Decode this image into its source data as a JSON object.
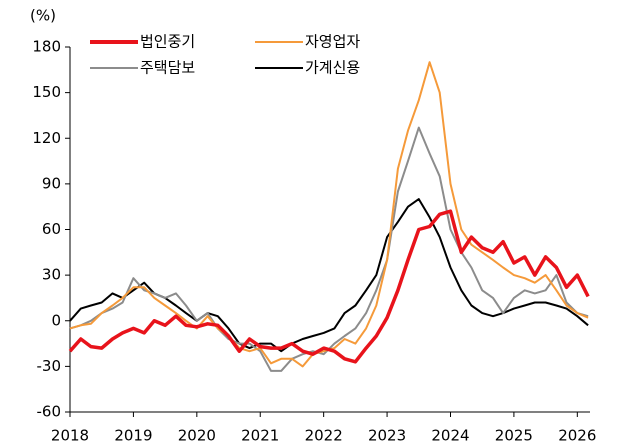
{
  "chart_data": {
    "type": "line",
    "y_unit_label": "(%)",
    "x": [
      2018,
      2018.17,
      2018.33,
      2018.5,
      2018.67,
      2018.83,
      2019,
      2019.17,
      2019.33,
      2019.5,
      2019.67,
      2019.83,
      2020,
      2020.17,
      2020.33,
      2020.5,
      2020.67,
      2020.83,
      2021,
      2021.17,
      2021.33,
      2021.5,
      2021.67,
      2021.83,
      2022,
      2022.17,
      2022.33,
      2022.5,
      2022.67,
      2022.83,
      2023,
      2023.17,
      2023.33,
      2023.5,
      2023.67,
      2023.83,
      2024,
      2024.17,
      2024.33,
      2024.5,
      2024.67,
      2024.83,
      2025,
      2025.17,
      2025.33,
      2025.5,
      2025.67,
      2025.83,
      2026,
      2026.17
    ],
    "series": [
      {
        "name": "법인중기",
        "color": "#e8131b",
        "values": [
          -20,
          -12,
          -17,
          -18,
          -12,
          -8,
          -5,
          -8,
          0,
          -3,
          3,
          -3,
          -4,
          -2,
          -3,
          -10,
          -20,
          -12,
          -17,
          -18,
          -18,
          -15,
          -20,
          -22,
          -18,
          -20,
          -25,
          -27,
          -18,
          -10,
          2,
          20,
          40,
          60,
          62,
          70,
          72,
          45,
          55,
          48,
          45,
          52,
          38,
          42,
          30,
          42,
          35,
          22,
          30,
          16
        ]
      },
      {
        "name": "자영업자",
        "color": "#f59a3a",
        "values": [
          -5,
          -3,
          -2,
          5,
          10,
          15,
          22,
          22,
          15,
          10,
          5,
          0,
          -5,
          3,
          -5,
          -10,
          -18,
          -20,
          -18,
          -28,
          -25,
          -25,
          -30,
          -22,
          -20,
          -18,
          -12,
          -15,
          -5,
          10,
          40,
          100,
          125,
          145,
          170,
          150,
          90,
          60,
          50,
          45,
          40,
          35,
          30,
          28,
          25,
          30,
          20,
          10,
          5,
          2
        ]
      },
      {
        "name": "주택담보",
        "color": "#8c8c8c",
        "values": [
          -5,
          -3,
          0,
          5,
          8,
          12,
          28,
          20,
          18,
          15,
          18,
          10,
          0,
          5,
          -5,
          -12,
          -15,
          -15,
          -20,
          -33,
          -33,
          -25,
          -22,
          -20,
          -22,
          -15,
          -10,
          -5,
          5,
          20,
          40,
          85,
          105,
          127,
          110,
          95,
          60,
          45,
          35,
          20,
          15,
          5,
          15,
          20,
          18,
          20,
          30,
          12,
          5,
          3
        ]
      },
      {
        "name": "가계신용",
        "color": "#000000",
        "values": [
          0,
          8,
          10,
          12,
          18,
          15,
          20,
          25,
          18,
          15,
          10,
          5,
          0,
          5,
          3,
          -5,
          -15,
          -18,
          -15,
          -15,
          -20,
          -15,
          -12,
          -10,
          -8,
          -5,
          5,
          10,
          20,
          30,
          55,
          65,
          75,
          80,
          68,
          55,
          35,
          20,
          10,
          5,
          3,
          5,
          8,
          10,
          12,
          12,
          10,
          8,
          3,
          -3
        ]
      }
    ],
    "xlim": [
      2018,
      2026.2
    ],
    "xticks": [
      2018,
      2019,
      2020,
      2021,
      2022,
      2023,
      2024,
      2025,
      2026
    ],
    "ylim": [
      -60,
      180
    ],
    "yticks": [
      -60,
      -30,
      0,
      30,
      60,
      90,
      120,
      150,
      180
    ]
  }
}
